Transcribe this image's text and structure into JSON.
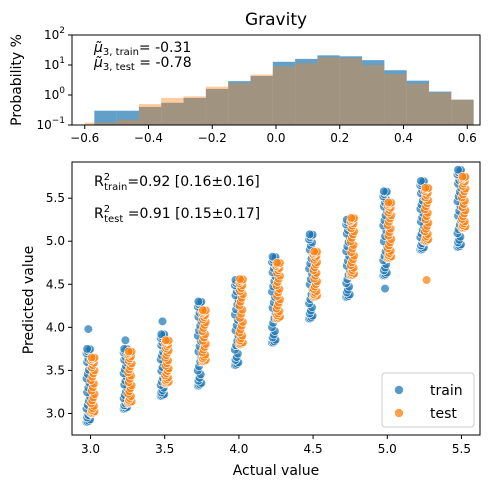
{
  "figure": {
    "title": "Gravity"
  },
  "chart_data": [
    {
      "type": "histogram",
      "ylabel": "Probability %",
      "xlim": [
        -0.64,
        0.64
      ],
      "ylim_log": [
        0.1,
        100
      ],
      "log_y": true,
      "x_ticks": [
        -0.6,
        -0.4,
        -0.2,
        0.0,
        0.2,
        0.4,
        0.6
      ],
      "x_tick_labels": [
        "−0.6",
        "−0.4",
        "−0.2",
        "0.0",
        "0.2",
        "0.4",
        "0.6"
      ],
      "y_ticks": [
        0.1,
        1,
        10,
        100
      ],
      "y_tick_labels": [
        [
          "10",
          "−1"
        ],
        [
          "10",
          "0"
        ],
        [
          "10",
          "1"
        ],
        [
          "10",
          "2"
        ]
      ],
      "annotation_train": {
        "prefix": "μ̃",
        "sub": "3, train",
        "value": "= -0.31"
      },
      "annotation_test": {
        "prefix": "μ̃",
        "sub": "3, test",
        "value": " = -0.78"
      },
      "series": [
        {
          "name": "train",
          "color": "#1f77b4",
          "bin_edges": [
            -0.57,
            -0.5,
            -0.43,
            -0.36,
            -0.29,
            -0.22,
            -0.15,
            -0.08,
            -0.01,
            0.06,
            0.13,
            0.2,
            0.27,
            0.34,
            0.41,
            0.48,
            0.55,
            0.62
          ],
          "values": [
            0.3,
            0.3,
            0.4,
            0.55,
            0.8,
            1.6,
            2.9,
            4.3,
            12.8,
            16.0,
            21.0,
            19.5,
            14.5,
            6.7,
            3.0,
            1.3,
            0.7
          ]
        },
        {
          "name": "test",
          "color": "#ff7f0e",
          "bin_edges": [
            -0.6,
            -0.5,
            -0.43,
            -0.36,
            -0.29,
            -0.22,
            -0.15,
            -0.08,
            -0.01,
            0.06,
            0.13,
            0.2,
            0.27,
            0.34,
            0.41,
            0.48,
            0.55,
            0.62
          ],
          "values": [
            0.12,
            0.15,
            0.5,
            0.8,
            0.9,
            1.9,
            2.5,
            4.8,
            9.0,
            11.5,
            18.0,
            17.0,
            10.0,
            5.0,
            2.4,
            1.2,
            0.7
          ]
        }
      ]
    },
    {
      "type": "scatter",
      "xlabel": "Actual value",
      "ylabel": "Predicted value",
      "xlim": [
        2.875,
        5.625
      ],
      "ylim": [
        2.75,
        5.92
      ],
      "x_ticks": [
        3.0,
        3.5,
        4.0,
        4.5,
        5.0,
        5.5
      ],
      "x_tick_labels": [
        "3.0",
        "3.5",
        "4.0",
        "4.5",
        "5.0",
        "5.5"
      ],
      "y_ticks": [
        3.0,
        3.5,
        4.0,
        4.5,
        5.0,
        5.5
      ],
      "y_tick_labels": [
        "3.0",
        "3.5",
        "4.0",
        "4.5",
        "5.0",
        "5.5"
      ],
      "annotation_train": {
        "r": "R",
        "sup": "2",
        "sub": "train",
        "text": "=0.92 [0.16±0.16]"
      },
      "annotation_test": {
        "r": "R",
        "sup": "2",
        "sub": "test",
        "text": " =0.91 [0.15±0.17]"
      },
      "legend": {
        "position": "bottom-right"
      },
      "series": [
        {
          "name": "train",
          "color": "#1f77b4",
          "x_offset": -0.015,
          "columns": [
            {
              "x": 3.0,
              "ymin": 2.9,
              "ymax": 3.75,
              "outliers": [
                3.98
              ]
            },
            {
              "x": 3.25,
              "ymin": 3.05,
              "ymax": 3.75,
              "outliers": [
                3.85
              ]
            },
            {
              "x": 3.5,
              "ymin": 3.2,
              "ymax": 3.92,
              "outliers": [
                4.07
              ]
            },
            {
              "x": 3.75,
              "ymin": 3.32,
              "ymax": 4.3,
              "outliers": []
            },
            {
              "x": 4.0,
              "ymin": 3.56,
              "ymax": 4.55,
              "outliers": []
            },
            {
              "x": 4.25,
              "ymin": 3.82,
              "ymax": 4.82,
              "outliers": []
            },
            {
              "x": 4.5,
              "ymin": 4.1,
              "ymax": 5.08,
              "outliers": []
            },
            {
              "x": 4.75,
              "ymin": 4.35,
              "ymax": 5.25,
              "outliers": []
            },
            {
              "x": 5.0,
              "ymin": 4.6,
              "ymax": 5.58,
              "outliers": [
                4.45
              ]
            },
            {
              "x": 5.25,
              "ymin": 4.9,
              "ymax": 5.7,
              "outliers": []
            },
            {
              "x": 5.5,
              "ymin": 4.93,
              "ymax": 5.83,
              "outliers": []
            }
          ]
        },
        {
          "name": "test",
          "color": "#ff7f0e",
          "x_offset": 0.015,
          "columns": [
            {
              "x": 3.0,
              "ymin": 3.0,
              "ymax": 3.65,
              "outliers": []
            },
            {
              "x": 3.25,
              "ymin": 3.12,
              "ymax": 3.72,
              "outliers": []
            },
            {
              "x": 3.5,
              "ymin": 3.35,
              "ymax": 3.85,
              "outliers": []
            },
            {
              "x": 3.75,
              "ymin": 3.6,
              "ymax": 4.2,
              "outliers": []
            },
            {
              "x": 4.0,
              "ymin": 3.8,
              "ymax": 4.56,
              "outliers": []
            },
            {
              "x": 4.25,
              "ymin": 4.1,
              "ymax": 4.75,
              "outliers": []
            },
            {
              "x": 4.5,
              "ymin": 4.35,
              "ymax": 4.88,
              "outliers": []
            },
            {
              "x": 4.75,
              "ymin": 4.6,
              "ymax": 5.27,
              "outliers": []
            },
            {
              "x": 5.0,
              "ymin": 4.8,
              "ymax": 5.45,
              "outliers": []
            },
            {
              "x": 5.25,
              "ymin": 5.0,
              "ymax": 5.62,
              "outliers": [
                4.55
              ]
            },
            {
              "x": 5.5,
              "ymin": 5.15,
              "ymax": 5.75,
              "outliers": []
            }
          ]
        }
      ]
    }
  ]
}
